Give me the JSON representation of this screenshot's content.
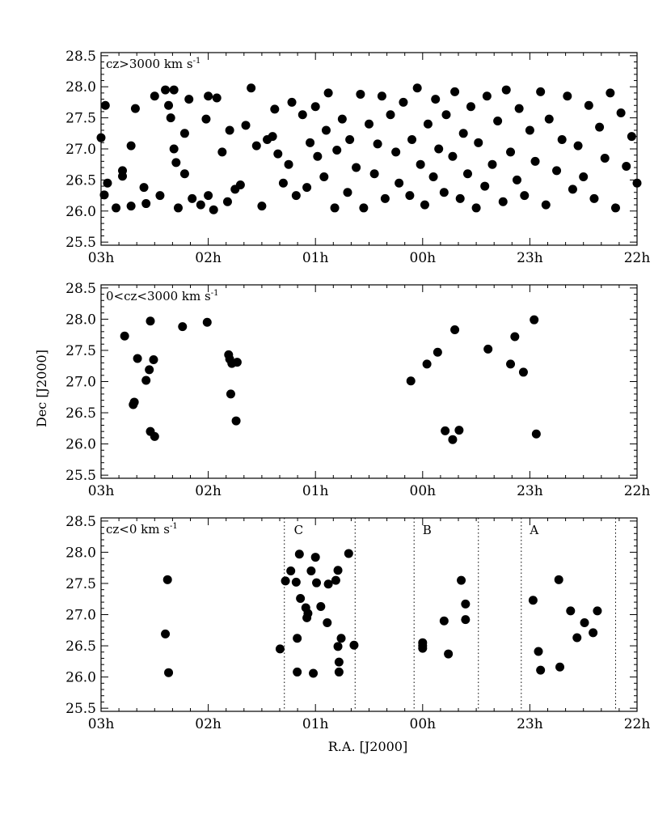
{
  "chart_data": [
    {
      "type": "scatter",
      "label": "cz>3000 km s",
      "label_sup": "-1",
      "xlabel": "",
      "ylabel": "",
      "x_unit": "hours R.A. (J2000)",
      "xlim": [
        27,
        22
      ],
      "ylim": [
        25.45,
        28.55
      ],
      "xtick_values": [
        27,
        26,
        25,
        24,
        23,
        22
      ],
      "xtick_labels": [
        "03h",
        "02h",
        "01h",
        "00h",
        "23h",
        "22h"
      ],
      "ytick_values": [
        25.5,
        26.0,
        26.5,
        27.0,
        27.5,
        28.0,
        28.5
      ],
      "ytick_labels": [
        "25.5",
        "26.0",
        "26.5",
        "27.0",
        "27.5",
        "28.0",
        "28.5"
      ],
      "boundaries": [],
      "regions": [],
      "points": [
        [
          27.0,
          27.18
        ],
        [
          26.96,
          27.7
        ],
        [
          26.97,
          26.26
        ],
        [
          26.94,
          26.45
        ],
        [
          26.86,
          26.05
        ],
        [
          26.8,
          26.56
        ],
        [
          26.8,
          26.65
        ],
        [
          26.72,
          27.05
        ],
        [
          26.72,
          26.08
        ],
        [
          26.68,
          27.65
        ],
        [
          26.6,
          26.38
        ],
        [
          26.58,
          26.12
        ],
        [
          26.5,
          27.85
        ],
        [
          26.45,
          26.25
        ],
        [
          26.4,
          27.95
        ],
        [
          26.37,
          27.7
        ],
        [
          26.35,
          27.5
        ],
        [
          26.32,
          27.95
        ],
        [
          26.32,
          27.0
        ],
        [
          26.3,
          26.78
        ],
        [
          26.28,
          26.05
        ],
        [
          26.22,
          27.25
        ],
        [
          26.22,
          26.6
        ],
        [
          26.18,
          27.8
        ],
        [
          26.15,
          26.2
        ],
        [
          26.07,
          26.1
        ],
        [
          26.02,
          27.48
        ],
        [
          26.0,
          27.85
        ],
        [
          26.0,
          26.25
        ],
        [
          25.95,
          26.02
        ],
        [
          25.92,
          27.82
        ],
        [
          25.87,
          26.95
        ],
        [
          25.82,
          26.15
        ],
        [
          25.8,
          27.3
        ],
        [
          25.75,
          26.35
        ],
        [
          25.7,
          26.42
        ],
        [
          25.65,
          27.38
        ],
        [
          25.6,
          27.98
        ],
        [
          25.55,
          27.05
        ],
        [
          25.5,
          26.08
        ],
        [
          25.45,
          27.15
        ],
        [
          25.4,
          27.2
        ],
        [
          25.38,
          27.64
        ],
        [
          25.35,
          26.92
        ],
        [
          25.3,
          26.45
        ],
        [
          25.25,
          26.75
        ],
        [
          25.22,
          27.75
        ],
        [
          25.18,
          26.25
        ],
        [
          25.12,
          27.55
        ],
        [
          25.08,
          26.38
        ],
        [
          25.05,
          27.1
        ],
        [
          25.0,
          27.68
        ],
        [
          24.98,
          26.88
        ],
        [
          24.92,
          26.55
        ],
        [
          24.9,
          27.3
        ],
        [
          24.88,
          27.9
        ],
        [
          24.82,
          26.05
        ],
        [
          24.8,
          26.98
        ],
        [
          24.75,
          27.48
        ],
        [
          24.7,
          26.3
        ],
        [
          24.68,
          27.15
        ],
        [
          24.62,
          26.7
        ],
        [
          24.58,
          27.88
        ],
        [
          24.55,
          26.05
        ],
        [
          24.5,
          27.4
        ],
        [
          24.45,
          26.6
        ],
        [
          24.42,
          27.08
        ],
        [
          24.38,
          27.85
        ],
        [
          24.35,
          26.2
        ],
        [
          24.3,
          27.55
        ],
        [
          24.25,
          26.95
        ],
        [
          24.22,
          26.45
        ],
        [
          24.18,
          27.75
        ],
        [
          24.12,
          26.25
        ],
        [
          24.1,
          27.15
        ],
        [
          24.05,
          27.98
        ],
        [
          24.02,
          26.75
        ],
        [
          23.98,
          26.1
        ],
        [
          23.95,
          27.4
        ],
        [
          23.9,
          26.55
        ],
        [
          23.88,
          27.8
        ],
        [
          23.85,
          27.0
        ],
        [
          23.8,
          26.3
        ],
        [
          23.78,
          27.55
        ],
        [
          23.72,
          26.88
        ],
        [
          23.7,
          27.92
        ],
        [
          23.65,
          26.2
        ],
        [
          23.62,
          27.25
        ],
        [
          23.58,
          26.6
        ],
        [
          23.55,
          27.68
        ],
        [
          23.5,
          26.05
        ],
        [
          23.48,
          27.1
        ],
        [
          23.42,
          26.4
        ],
        [
          23.4,
          27.85
        ],
        [
          23.35,
          26.75
        ],
        [
          23.3,
          27.45
        ],
        [
          23.25,
          26.15
        ],
        [
          23.22,
          27.95
        ],
        [
          23.18,
          26.95
        ],
        [
          23.12,
          26.5
        ],
        [
          23.1,
          27.65
        ],
        [
          23.05,
          26.25
        ],
        [
          23.0,
          27.3
        ],
        [
          22.95,
          26.8
        ],
        [
          22.9,
          27.92
        ],
        [
          22.85,
          26.1
        ],
        [
          22.82,
          27.48
        ],
        [
          22.75,
          26.65
        ],
        [
          22.7,
          27.15
        ],
        [
          22.65,
          27.85
        ],
        [
          22.6,
          26.35
        ],
        [
          22.55,
          27.05
        ],
        [
          22.5,
          26.55
        ],
        [
          22.45,
          27.7
        ],
        [
          22.4,
          26.2
        ],
        [
          22.35,
          27.35
        ],
        [
          22.3,
          26.85
        ],
        [
          22.25,
          27.9
        ],
        [
          22.2,
          26.05
        ],
        [
          22.15,
          27.58
        ],
        [
          22.1,
          26.72
        ],
        [
          22.05,
          27.2
        ],
        [
          22.0,
          26.45
        ]
      ]
    },
    {
      "type": "scatter",
      "label": "0<cz<3000 km s",
      "label_sup": "-1",
      "xlabel": "",
      "ylabel": "Dec [J2000]",
      "x_unit": "hours R.A. (J2000)",
      "xlim": [
        27,
        22
      ],
      "ylim": [
        25.45,
        28.55
      ],
      "xtick_values": [
        27,
        26,
        25,
        24,
        23,
        22
      ],
      "xtick_labels": [
        "03h",
        "02h",
        "01h",
        "00h",
        "23h",
        "22h"
      ],
      "ytick_values": [
        25.5,
        26.0,
        26.5,
        27.0,
        27.5,
        28.0,
        28.5
      ],
      "ytick_labels": [
        "25.5",
        "26.0",
        "26.5",
        "27.0",
        "27.5",
        "28.0",
        "28.5"
      ],
      "boundaries": [],
      "regions": [],
      "points": [
        [
          26.78,
          27.73
        ],
        [
          26.7,
          26.63
        ],
        [
          26.69,
          26.67
        ],
        [
          26.66,
          27.37
        ],
        [
          26.58,
          27.02
        ],
        [
          26.55,
          27.19
        ],
        [
          26.54,
          27.97
        ],
        [
          26.54,
          26.2
        ],
        [
          26.51,
          27.35
        ],
        [
          26.5,
          26.12
        ],
        [
          26.24,
          27.88
        ],
        [
          26.01,
          27.95
        ],
        [
          25.81,
          27.43
        ],
        [
          25.8,
          27.36
        ],
        [
          25.78,
          27.29
        ],
        [
          25.79,
          26.8
        ],
        [
          25.73,
          27.31
        ],
        [
          25.74,
          26.37
        ],
        [
          24.11,
          27.01
        ],
        [
          23.96,
          27.28
        ],
        [
          23.86,
          27.47
        ],
        [
          23.79,
          26.21
        ],
        [
          23.72,
          26.07
        ],
        [
          23.7,
          27.83
        ],
        [
          23.66,
          26.22
        ],
        [
          23.39,
          27.52
        ],
        [
          23.18,
          27.28
        ],
        [
          23.14,
          27.72
        ],
        [
          23.06,
          27.15
        ],
        [
          22.96,
          27.99
        ],
        [
          22.94,
          26.16
        ]
      ]
    },
    {
      "type": "scatter",
      "label": "cz<0 km s",
      "label_sup": "-1",
      "xlabel": "R.A. [J2000]",
      "ylabel": "",
      "x_unit": "hours R.A. (J2000)",
      "xlim": [
        27,
        22
      ],
      "ylim": [
        25.45,
        28.55
      ],
      "xtick_values": [
        27,
        26,
        25,
        24,
        23,
        22
      ],
      "xtick_labels": [
        "03h",
        "02h",
        "01h",
        "00h",
        "23h",
        "22h"
      ],
      "ytick_values": [
        25.5,
        26.0,
        26.5,
        27.0,
        27.5,
        28.0,
        28.5
      ],
      "ytick_labels": [
        "25.5",
        "26.0",
        "26.5",
        "27.0",
        "27.5",
        "28.0",
        "28.5"
      ],
      "boundaries": [
        25.29,
        24.63,
        24.08,
        23.48,
        23.08,
        22.2
      ],
      "regions": [
        {
          "name": "C",
          "x": 25.2
        },
        {
          "name": "B",
          "x": 24.0
        },
        {
          "name": "A",
          "x": 23.0
        }
      ],
      "points": [
        [
          26.38,
          27.56
        ],
        [
          26.4,
          26.69
        ],
        [
          26.37,
          26.07
        ],
        [
          25.33,
          26.45
        ],
        [
          25.28,
          27.54
        ],
        [
          25.23,
          27.7
        ],
        [
          25.18,
          27.52
        ],
        [
          25.17,
          26.08
        ],
        [
          25.17,
          26.62
        ],
        [
          25.15,
          27.97
        ],
        [
          25.14,
          27.26
        ],
        [
          25.09,
          27.11
        ],
        [
          25.08,
          26.95
        ],
        [
          25.07,
          27.02
        ],
        [
          25.04,
          27.7
        ],
        [
          25.02,
          26.06
        ],
        [
          25.0,
          27.92
        ],
        [
          24.99,
          27.51
        ],
        [
          24.95,
          27.13
        ],
        [
          24.89,
          26.87
        ],
        [
          24.88,
          27.49
        ],
        [
          24.81,
          27.55
        ],
        [
          24.79,
          26.49
        ],
        [
          24.78,
          26.24
        ],
        [
          24.78,
          26.08
        ],
        [
          24.79,
          27.71
        ],
        [
          24.76,
          26.62
        ],
        [
          24.69,
          27.98
        ],
        [
          24.64,
          26.51
        ],
        [
          24.0,
          26.55
        ],
        [
          24.0,
          26.5
        ],
        [
          24.0,
          26.46
        ],
        [
          23.8,
          26.9
        ],
        [
          23.76,
          26.37
        ],
        [
          23.64,
          27.55
        ],
        [
          23.6,
          26.92
        ],
        [
          23.6,
          27.17
        ],
        [
          22.97,
          27.23
        ],
        [
          22.92,
          26.41
        ],
        [
          22.9,
          26.11
        ],
        [
          22.73,
          27.56
        ],
        [
          22.72,
          26.16
        ],
        [
          22.62,
          27.06
        ],
        [
          22.56,
          26.63
        ],
        [
          22.49,
          26.87
        ],
        [
          22.41,
          26.71
        ],
        [
          22.37,
          27.06
        ]
      ]
    }
  ]
}
